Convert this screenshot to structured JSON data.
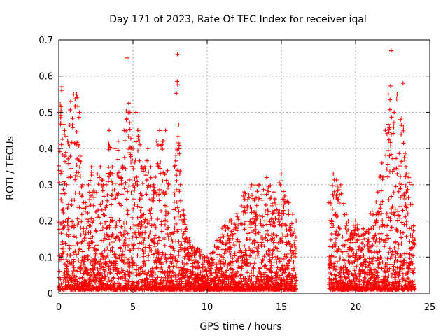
{
  "chart_data": {
    "type": "scatter",
    "title": "Day 171 of 2023, Rate Of TEC Index for receiver iqal",
    "xlabel": "GPS time / hours",
    "ylabel": "ROTI / TECUs",
    "xlim": [
      0,
      25
    ],
    "ylim": [
      0,
      0.7
    ],
    "xticks": [
      "0",
      "5",
      "10",
      "15",
      "20",
      "25"
    ],
    "yticks": [
      "0",
      "0.1",
      "0.2",
      "0.3",
      "0.4",
      "0.5",
      "0.6",
      "0.7"
    ],
    "grid": true,
    "marker": "+",
    "series_color": "#ff0000",
    "envelope": {
      "x": [
        0.0,
        0.2,
        0.4,
        0.6,
        0.8,
        1.0,
        1.2,
        1.4,
        1.6,
        1.8,
        2.0,
        2.2,
        2.4,
        2.6,
        2.8,
        3.0,
        3.2,
        3.4,
        3.6,
        3.8,
        4.0,
        4.2,
        4.4,
        4.6,
        4.8,
        5.0,
        5.2,
        5.4,
        5.6,
        5.8,
        6.0,
        6.2,
        6.4,
        6.6,
        6.8,
        7.0,
        7.2,
        7.4,
        7.6,
        7.8,
        8.0,
        8.2,
        8.4,
        8.6,
        8.8,
        9.0,
        9.5,
        10.0,
        10.5,
        11.0,
        11.5,
        12.0,
        12.5,
        13.0,
        13.5,
        14.0,
        14.5,
        15.0,
        15.5,
        16.0,
        18.2,
        18.5,
        19.0,
        19.5,
        20.0,
        20.5,
        21.0,
        21.5,
        22.0,
        22.2,
        22.4,
        22.6,
        22.8,
        23.0,
        23.2,
        23.4,
        23.6,
        23.8,
        24.0
      ],
      "ymax": [
        0.5,
        0.57,
        0.45,
        0.42,
        0.53,
        0.55,
        0.55,
        0.5,
        0.3,
        0.25,
        0.3,
        0.35,
        0.28,
        0.33,
        0.35,
        0.3,
        0.3,
        0.45,
        0.35,
        0.4,
        0.42,
        0.32,
        0.45,
        0.65,
        0.5,
        0.4,
        0.5,
        0.45,
        0.35,
        0.35,
        0.4,
        0.35,
        0.3,
        0.42,
        0.45,
        0.42,
        0.45,
        0.3,
        0.15,
        0.35,
        0.66,
        0.3,
        0.23,
        0.18,
        0.15,
        0.13,
        0.12,
        0.1,
        0.13,
        0.18,
        0.2,
        0.22,
        0.28,
        0.3,
        0.3,
        0.32,
        0.28,
        0.33,
        0.25,
        0.2,
        0.25,
        0.33,
        0.3,
        0.2,
        0.2,
        0.18,
        0.22,
        0.28,
        0.45,
        0.55,
        0.67,
        0.5,
        0.55,
        0.48,
        0.58,
        0.35,
        0.33,
        0.3,
        0.15
      ]
    }
  }
}
